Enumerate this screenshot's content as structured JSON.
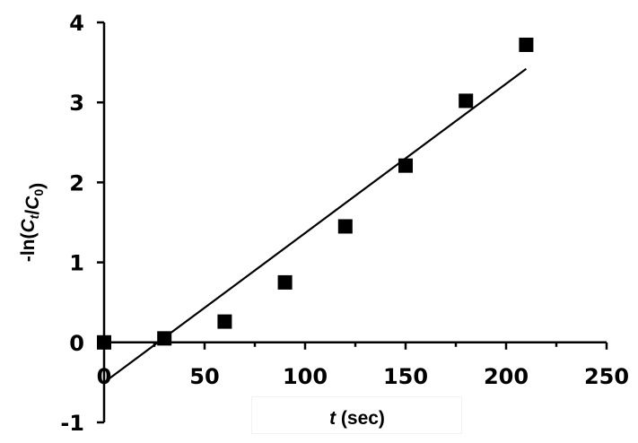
{
  "chart_data": {
    "type": "scatter",
    "title": "",
    "xlabel": "t (sec)",
    "xlabel_parts": {
      "var": "t",
      "unit": " (sec)"
    },
    "ylabel": "-ln(Ct/C0)",
    "ylabel_parts": {
      "prefix": "-ln(",
      "c1": "C",
      "sub1": "t",
      "slash": "/",
      "c2": "C",
      "sub2": "0",
      "suffix": ")"
    },
    "xlim": [
      0,
      250
    ],
    "ylim": [
      -1,
      4
    ],
    "x_ticks": [
      0,
      50,
      100,
      150,
      200,
      250
    ],
    "x_tick_labels": [
      "0",
      "50",
      "100",
      "150",
      "200",
      "250"
    ],
    "x_minor_ticks": [
      25,
      75,
      125,
      175,
      225
    ],
    "y_ticks": [
      -1,
      0,
      1,
      2,
      3,
      4
    ],
    "y_tick_labels": [
      "-1",
      "0",
      "1",
      "2",
      "3",
      "4"
    ],
    "grid": false,
    "legend": null,
    "series": [
      {
        "name": "data",
        "marker": "square",
        "color": "#000000",
        "x": [
          0,
          30,
          60,
          90,
          120,
          150,
          180,
          210
        ],
        "y": [
          0.0,
          0.05,
          0.26,
          0.75,
          1.45,
          2.21,
          3.02,
          3.72
        ]
      }
    ],
    "fit_line": {
      "name": "linear fit",
      "color": "#000000",
      "x": [
        0,
        210
      ],
      "y": [
        -0.5,
        3.42
      ],
      "slope": 0.0187,
      "intercept": -0.5
    }
  },
  "colors": {
    "foreground": "#000000",
    "background": "#ffffff"
  }
}
